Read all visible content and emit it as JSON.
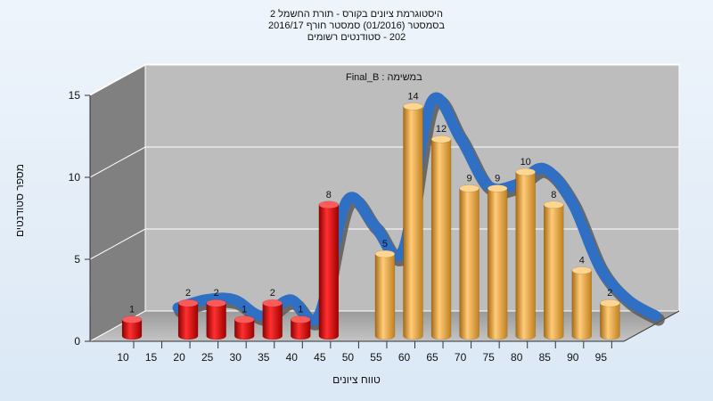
{
  "chart_data": {
    "type": "bar",
    "title_lines": [
      "היסטוגרמת ציונים בקורס - תורת החשמל 2",
      "בסמסטר  (01/2016)  סמסטר חורף 2016/17",
      "202 - סטודנטים רשומים"
    ],
    "series_label": "במשימה : Final_B",
    "xlabel": "טווח ציונים",
    "ylabel": "מספר סטודנטים",
    "ylim": [
      0,
      15
    ],
    "yticks": [
      0,
      5,
      10,
      15
    ],
    "x_ticks": [
      "10",
      "15",
      "20",
      "25",
      "30",
      "35",
      "40",
      "45",
      "50",
      "55",
      "60",
      "65",
      "70",
      "75",
      "80",
      "85",
      "90",
      "95"
    ],
    "bars": [
      {
        "x": 10,
        "value": 1,
        "group": "fail"
      },
      {
        "x": 20,
        "value": 2,
        "group": "fail"
      },
      {
        "x": 25,
        "value": 2,
        "group": "fail"
      },
      {
        "x": 30,
        "value": 1,
        "group": "fail"
      },
      {
        "x": 35,
        "value": 2,
        "group": "fail"
      },
      {
        "x": 40,
        "value": 1,
        "group": "fail"
      },
      {
        "x": 45,
        "value": 8,
        "group": "fail"
      },
      {
        "x": 55,
        "value": 5,
        "group": "pass"
      },
      {
        "x": 60,
        "value": 14,
        "group": "pass"
      },
      {
        "x": 65,
        "value": 12,
        "group": "pass"
      },
      {
        "x": 70,
        "value": 9,
        "group": "pass"
      },
      {
        "x": 75,
        "value": 9,
        "group": "pass"
      },
      {
        "x": 80,
        "value": 10,
        "group": "pass"
      },
      {
        "x": 85,
        "value": 8,
        "group": "pass"
      },
      {
        "x": 90,
        "value": 4,
        "group": "pass"
      },
      {
        "x": 95,
        "value": 2,
        "group": "pass"
      }
    ],
    "colors": {
      "fail": "#e01818",
      "pass": "#e9a23b",
      "curve": "#2f6fc4",
      "curve_shadow": "#5a5a5a"
    }
  }
}
